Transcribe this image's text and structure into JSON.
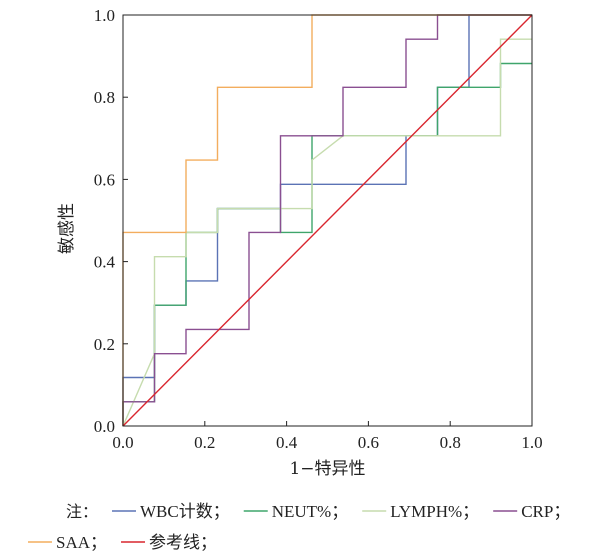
{
  "chart_data": {
    "type": "line",
    "xlabel": "1−特异性",
    "ylabel": "敏感性",
    "xlim": [
      0,
      1
    ],
    "ylim": [
      0,
      1
    ],
    "xticks": [
      "0.0",
      "0.2",
      "0.4",
      "0.6",
      "0.8",
      "1.0"
    ],
    "yticks": [
      "0.0",
      "0.2",
      "0.4",
      "0.6",
      "0.8",
      "1.0"
    ],
    "grid": false,
    "legend_position": "bottom",
    "legend_prefix": "注：",
    "series": [
      {
        "name": "WBC计数",
        "color": "#5b73b5",
        "x": [
          0,
          0,
          0.077,
          0.077,
          0.154,
          0.154,
          0.231,
          0.231,
          0.385,
          0.385,
          0.692,
          0.692,
          0.769,
          0.769,
          0.846,
          0.846,
          1
        ],
        "y": [
          0,
          0.118,
          0.118,
          0.294,
          0.294,
          0.353,
          0.353,
          0.529,
          0.529,
          0.588,
          0.588,
          0.706,
          0.706,
          0.824,
          0.824,
          1,
          1
        ]
      },
      {
        "name": "NEUT%",
        "color": "#3fa56b",
        "x": [
          0,
          0,
          0.077,
          0.077,
          0.154,
          0.154,
          0.231,
          0.231,
          0.385,
          0.385,
          0.462,
          0.462,
          0.538,
          0.538,
          0.769,
          0.769,
          0.923,
          0.923,
          1
        ],
        "y": [
          0,
          0.059,
          0.059,
          0.294,
          0.294,
          0.471,
          0.471,
          0.529,
          0.529,
          0.471,
          0.471,
          0.706,
          0.706,
          0.706,
          0.706,
          0.824,
          0.824,
          0.882,
          0.882
        ]
      },
      {
        "name": "LYMPH%",
        "color": "#c6dcae",
        "x": [
          0,
          0.077,
          0.077,
          0.154,
          0.154,
          0.231,
          0.231,
          0.385,
          0.385,
          0.462,
          0.462,
          0.538,
          0.538,
          0.923,
          0.923,
          1
        ],
        "y": [
          0,
          0.176,
          0.412,
          0.412,
          0.471,
          0.471,
          0.529,
          0.529,
          0.529,
          0.529,
          0.647,
          0.706,
          0.706,
          0.706,
          0.941,
          0.941
        ]
      },
      {
        "name": "CRP",
        "color": "#8a4f91",
        "x": [
          0,
          0,
          0.077,
          0.077,
          0.154,
          0.154,
          0.308,
          0.308,
          0.385,
          0.385,
          0.538,
          0.538,
          0.692,
          0.692,
          0.769,
          0.769,
          0.846,
          0.846,
          1
        ],
        "y": [
          0,
          0.059,
          0.059,
          0.176,
          0.176,
          0.235,
          0.235,
          0.471,
          0.471,
          0.706,
          0.706,
          0.824,
          0.824,
          0.941,
          0.941,
          1,
          1,
          1,
          1
        ]
      },
      {
        "name": "SAA",
        "color": "#f3ad5e",
        "x": [
          0,
          0,
          0.154,
          0.154,
          0.231,
          0.231,
          0.462,
          0.462,
          1
        ],
        "y": [
          0,
          0.471,
          0.471,
          0.647,
          0.647,
          0.824,
          0.824,
          1,
          1
        ]
      },
      {
        "name": "参考线",
        "color": "#d9262f",
        "x": [
          0,
          1
        ],
        "y": [
          0,
          1
        ]
      }
    ]
  }
}
